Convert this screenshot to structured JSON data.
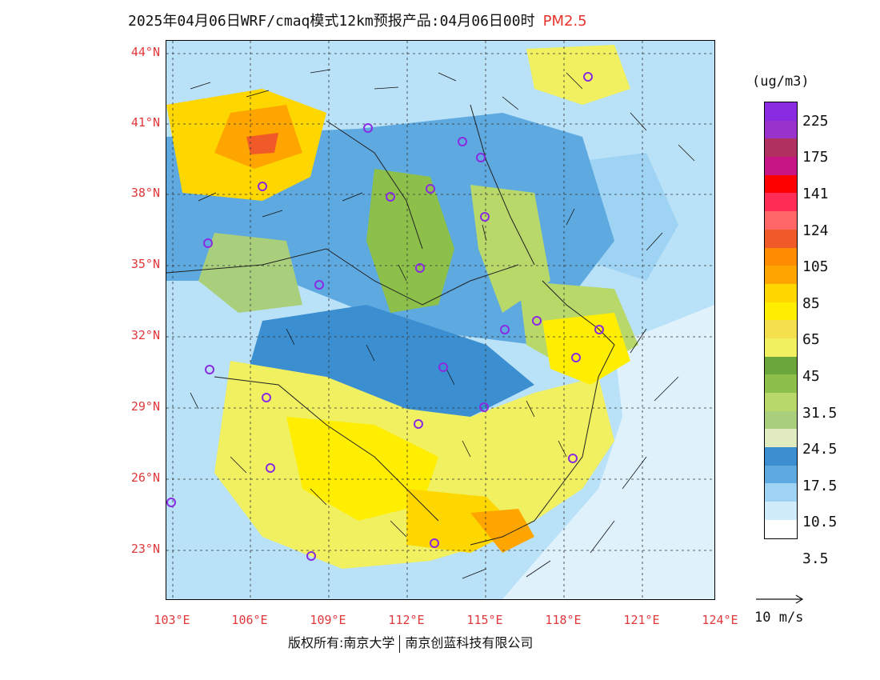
{
  "header": {
    "title": "2025年04月06日WRF/cmaq模式12km预报产品:04月06日00时",
    "variable": "PM2.5"
  },
  "axes": {
    "lat_labels": [
      "44°N",
      "41°N",
      "38°N",
      "35°N",
      "32°N",
      "29°N",
      "26°N",
      "23°N"
    ],
    "lon_labels": [
      "103°E",
      "106°E",
      "109°E",
      "112°E",
      "115°E",
      "118°E",
      "121°E",
      "124°E"
    ]
  },
  "legend": {
    "unit": "(ug/m3)",
    "levels": [
      "225",
      "175",
      "141",
      "124",
      "105",
      "85",
      "65",
      "45",
      "31.5",
      "24.5",
      "17.5",
      "10.5",
      "3.5"
    ],
    "colors": [
      "#8a2be2",
      "#9932cc",
      "#b03060",
      "#c71585",
      "#ff0000",
      "#ff2d55",
      "#ff6666",
      "#f05a28",
      "#ff8c00",
      "#ffa500",
      "#ffd700",
      "#ffee00",
      "#f4e04d",
      "#f0f060",
      "#6aa63a",
      "#8cc04a",
      "#b8d86a",
      "#a9cf7c",
      "#e0ebc0",
      "#3b8fd0",
      "#5da9e0",
      "#9fd3f3",
      "#d0ecfa",
      "#ffffff"
    ],
    "wind_reference": "10 m/s"
  },
  "footer": {
    "copyright": "版权所有:南京大学",
    "company": "南京创蓝科技有限公司"
  }
}
